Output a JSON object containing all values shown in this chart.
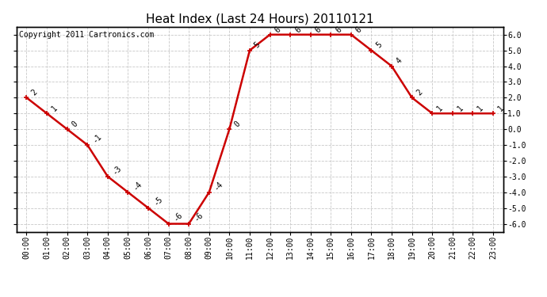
{
  "title": "Heat Index (Last 24 Hours) 20110121",
  "copyright": "Copyright 2011 Cartronics.com",
  "hours": [
    "00:00",
    "01:00",
    "02:00",
    "03:00",
    "04:00",
    "05:00",
    "06:00",
    "07:00",
    "08:00",
    "09:00",
    "10:00",
    "11:00",
    "12:00",
    "13:00",
    "14:00",
    "15:00",
    "16:00",
    "17:00",
    "18:00",
    "19:00",
    "20:00",
    "21:00",
    "22:00",
    "23:00"
  ],
  "values": [
    2,
    1,
    0,
    -1,
    -3,
    -4,
    -5,
    -6,
    -6,
    -4,
    0,
    5,
    6,
    6,
    6,
    6,
    6,
    5,
    4,
    2,
    1,
    1,
    1,
    1
  ],
  "line_color": "#cc0000",
  "marker": "+",
  "marker_color": "#cc0000",
  "bg_color": "#ffffff",
  "grid_color": "#c8c8c8",
  "ylim": [
    -6.5,
    6.5
  ],
  "yticks": [
    -6.0,
    -5.0,
    -4.0,
    -3.0,
    -2.0,
    -1.0,
    0.0,
    1.0,
    2.0,
    3.0,
    4.0,
    5.0,
    6.0
  ],
  "title_fontsize": 11,
  "label_fontsize": 7,
  "copyright_fontsize": 7,
  "annotation_fontsize": 7,
  "line_width": 1.8,
  "marker_size": 5
}
